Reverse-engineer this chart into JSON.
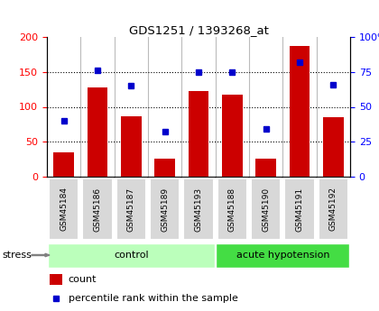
{
  "title": "GDS1251 / 1393268_at",
  "samples": [
    "GSM45184",
    "GSM45186",
    "GSM45187",
    "GSM45189",
    "GSM45193",
    "GSM45188",
    "GSM45190",
    "GSM45191",
    "GSM45192"
  ],
  "counts": [
    35,
    128,
    87,
    26,
    122,
    118,
    26,
    187,
    85
  ],
  "percentiles": [
    40,
    76,
    65,
    32,
    75,
    75,
    34,
    82,
    66
  ],
  "groups": [
    "control",
    "control",
    "control",
    "control",
    "control",
    "acute hypotension",
    "acute hypotension",
    "acute hypotension",
    "acute hypotension"
  ],
  "group_colors": {
    "control": "#bbffbb",
    "acute hypotension": "#44dd44"
  },
  "bar_color": "#cc0000",
  "dot_color": "#0000cc",
  "left_ylim": [
    0,
    200
  ],
  "right_ylim": [
    0,
    100
  ],
  "left_yticks": [
    0,
    50,
    100,
    150,
    200
  ],
  "right_yticks": [
    0,
    25,
    50,
    75,
    100
  ],
  "right_yticklabels": [
    "0",
    "25",
    "50",
    "75",
    "100%"
  ],
  "grid_values": [
    50,
    100,
    150
  ],
  "plot_bg_color": "#ffffff",
  "label_box_color": "#d8d8d8",
  "stress_label": "stress",
  "legend_count_label": "count",
  "legend_percentile_label": "percentile rank within the sample"
}
